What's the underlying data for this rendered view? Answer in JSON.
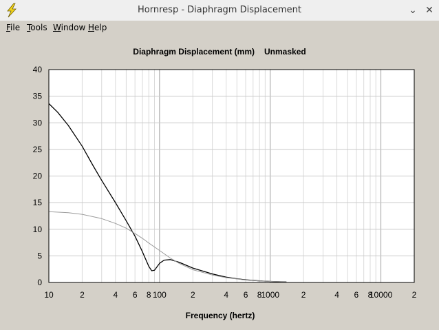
{
  "window": {
    "title": "Hornresp - Diaphragm Displacement",
    "minimize_glyph": "⌄",
    "close_glyph": "✕",
    "icon": "lightning-bolt-icon"
  },
  "menu": {
    "file": {
      "first": "F",
      "rest": "ile"
    },
    "tools": {
      "first": "T",
      "rest": "ools"
    },
    "window": {
      "first": "W",
      "rest": "indow"
    },
    "help": {
      "first": "H",
      "rest": "elp"
    }
  },
  "chart_data": {
    "type": "line",
    "title": "Diaphragm Displacement (mm)",
    "subtitle": "Unmasked",
    "xlabel": "Frequency (hertz)",
    "ylabel": "",
    "x_scale": "log",
    "xlim": [
      10,
      20000
    ],
    "ylim": [
      0,
      40
    ],
    "grid": true,
    "x_tick_labels": [
      {
        "value": 10,
        "label": "10"
      },
      {
        "value": 20,
        "label": "2"
      },
      {
        "value": 40,
        "label": "4"
      },
      {
        "value": 60,
        "label": "6"
      },
      {
        "value": 80,
        "label": "8"
      },
      {
        "value": 100,
        "label": "100"
      },
      {
        "value": 200,
        "label": "2"
      },
      {
        "value": 400,
        "label": "4"
      },
      {
        "value": 600,
        "label": "6"
      },
      {
        "value": 800,
        "label": "8"
      },
      {
        "value": 1000,
        "label": "1000"
      },
      {
        "value": 2000,
        "label": "2"
      },
      {
        "value": 4000,
        "label": "4"
      },
      {
        "value": 6000,
        "label": "6"
      },
      {
        "value": 8000,
        "label": "8"
      },
      {
        "value": 10000,
        "label": "10000"
      },
      {
        "value": 20000,
        "label": "2"
      }
    ],
    "y_ticks": [
      0,
      5,
      10,
      15,
      20,
      25,
      30,
      35,
      40
    ],
    "series": [
      {
        "color": "#000000",
        "points": [
          [
            10,
            33.6
          ],
          [
            12,
            32.0
          ],
          [
            15,
            29.5
          ],
          [
            20,
            25.6
          ],
          [
            25,
            22.0
          ],
          [
            30,
            19.2
          ],
          [
            40,
            15.0
          ],
          [
            50,
            11.6
          ],
          [
            60,
            8.7
          ],
          [
            70,
            5.8
          ],
          [
            80,
            3.0
          ],
          [
            85,
            2.2
          ],
          [
            90,
            2.3
          ],
          [
            100,
            3.6
          ],
          [
            110,
            4.2
          ],
          [
            125,
            4.3
          ],
          [
            150,
            3.8
          ],
          [
            200,
            2.7
          ],
          [
            300,
            1.6
          ],
          [
            400,
            1.0
          ],
          [
            500,
            0.7
          ],
          [
            600,
            0.5
          ],
          [
            800,
            0.3
          ],
          [
            1000,
            0.2
          ],
          [
            1400,
            0.1
          ]
        ]
      },
      {
        "color": "#9a9a9a",
        "points": [
          [
            10,
            13.3
          ],
          [
            15,
            13.1
          ],
          [
            20,
            12.8
          ],
          [
            30,
            12.0
          ],
          [
            40,
            11.1
          ],
          [
            50,
            10.2
          ],
          [
            60,
            9.2
          ],
          [
            70,
            8.3
          ],
          [
            80,
            7.4
          ],
          [
            100,
            6.0
          ],
          [
            125,
            4.6
          ],
          [
            150,
            3.6
          ],
          [
            200,
            2.4
          ],
          [
            300,
            1.4
          ],
          [
            400,
            0.9
          ],
          [
            600,
            0.45
          ],
          [
            800,
            0.3
          ],
          [
            1000,
            0.2
          ],
          [
            1400,
            0.1
          ]
        ]
      }
    ]
  }
}
